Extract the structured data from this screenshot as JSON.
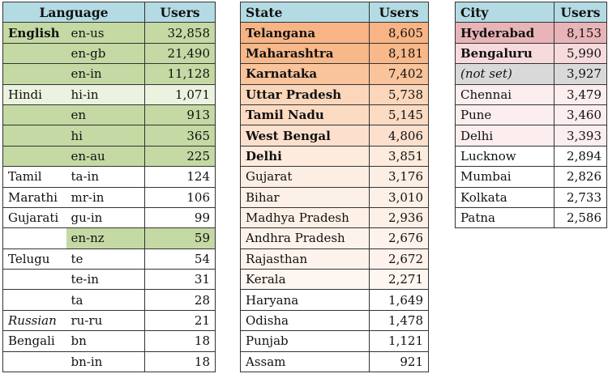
{
  "language_table": {
    "header": {
      "language": "Language",
      "users": "Users"
    },
    "rows": [
      {
        "name": "English",
        "code": "en-us",
        "users": "32,858",
        "name_bold": true,
        "name_italic": false,
        "name_bg": "#c4d9a3",
        "code_bg": "#c4d9a3"
      },
      {
        "name": "",
        "code": "en-gb",
        "users": "21,490",
        "name_bold": false,
        "name_italic": false,
        "name_bg": "#c4d9a3",
        "code_bg": "#c4d9a3"
      },
      {
        "name": "",
        "code": "en-in",
        "users": "11,128",
        "name_bold": false,
        "name_italic": false,
        "name_bg": "#c4d9a3",
        "code_bg": "#c4d9a3"
      },
      {
        "name": "Hindi",
        "code": "hi-in",
        "users": "1,071",
        "name_bold": false,
        "name_italic": false,
        "name_bg": "#ebf2df",
        "code_bg": "#ebf2df"
      },
      {
        "name": "",
        "code": "en",
        "users": "913",
        "name_bold": false,
        "name_italic": false,
        "name_bg": "#c4d9a3",
        "code_bg": "#c4d9a3"
      },
      {
        "name": "",
        "code": "hi",
        "users": "365",
        "name_bold": false,
        "name_italic": false,
        "name_bg": "#c4d9a3",
        "code_bg": "#c4d9a3"
      },
      {
        "name": "",
        "code": "en-au",
        "users": "225",
        "name_bold": false,
        "name_italic": false,
        "name_bg": "#c4d9a3",
        "code_bg": "#c4d9a3"
      },
      {
        "name": "Tamil",
        "code": "ta-in",
        "users": "124",
        "name_bold": false,
        "name_italic": false,
        "name_bg": "#ffffff",
        "code_bg": "#ffffff"
      },
      {
        "name": "Marathi",
        "code": "mr-in",
        "users": "106",
        "name_bold": false,
        "name_italic": false,
        "name_bg": "#ffffff",
        "code_bg": "#ffffff"
      },
      {
        "name": "Gujarati",
        "code": "gu-in",
        "users": "99",
        "name_bold": false,
        "name_italic": false,
        "name_bg": "#ffffff",
        "code_bg": "#ffffff"
      },
      {
        "name": "",
        "code": "en-nz",
        "users": "59",
        "name_bold": false,
        "name_italic": false,
        "name_bg": "#ffffff",
        "code_bg": "#c4d9a3"
      },
      {
        "name": "Telugu",
        "code": "te",
        "users": "54",
        "name_bold": false,
        "name_italic": false,
        "name_bg": "#ffffff",
        "code_bg": "#ffffff"
      },
      {
        "name": "",
        "code": "te-in",
        "users": "31",
        "name_bold": false,
        "name_italic": false,
        "name_bg": "#ffffff",
        "code_bg": "#ffffff"
      },
      {
        "name": "",
        "code": "ta",
        "users": "28",
        "name_bold": false,
        "name_italic": false,
        "name_bg": "#ffffff",
        "code_bg": "#ffffff"
      },
      {
        "name": "Russian",
        "code": "ru-ru",
        "users": "21",
        "name_bold": false,
        "name_italic": true,
        "name_bg": "#ffffff",
        "code_bg": "#ffffff"
      },
      {
        "name": "Bengali",
        "code": "bn",
        "users": "18",
        "name_bold": false,
        "name_italic": false,
        "name_bg": "#ffffff",
        "code_bg": "#ffffff"
      },
      {
        "name": "",
        "code": "bn-in",
        "users": "18",
        "name_bold": false,
        "name_italic": false,
        "name_bg": "#ffffff",
        "code_bg": "#ffffff"
      }
    ]
  },
  "state_table": {
    "header": {
      "state": "State",
      "users": "Users"
    },
    "rows": [
      {
        "state": "Telangana",
        "users": "8,605",
        "bold": true,
        "bg": "#f8b485"
      },
      {
        "state": "Maharashtra",
        "users": "8,181",
        "bold": true,
        "bg": "#f8b889"
      },
      {
        "state": "Karnataka",
        "users": "7,402",
        "bold": true,
        "bg": "#f9c39b"
      },
      {
        "state": "Uttar Pradesh",
        "users": "5,738",
        "bold": true,
        "bg": "#fbd6bb"
      },
      {
        "state": "Tamil Nadu",
        "users": "5,145",
        "bold": true,
        "bg": "#fcdbc3"
      },
      {
        "state": "West Bengal",
        "users": "4,806",
        "bold": true,
        "bg": "#fce0cd"
      },
      {
        "state": "Delhi",
        "users": "3,851",
        "bold": true,
        "bg": "#fdebdd"
      },
      {
        "state": "Gujarat",
        "users": "3,176",
        "bold": false,
        "bg": "#fdeee4"
      },
      {
        "state": "Bihar",
        "users": "3,010",
        "bold": false,
        "bg": "#fdf0e6"
      },
      {
        "state": "Madhya Pradesh",
        "users": "2,936",
        "bold": false,
        "bg": "#fdf0e7"
      },
      {
        "state": "Andhra Pradesh",
        "users": "2,676",
        "bold": false,
        "bg": "#fef3ec"
      },
      {
        "state": "Rajasthan",
        "users": "2,672",
        "bold": false,
        "bg": "#fef3ec"
      },
      {
        "state": "Kerala",
        "users": "2,271",
        "bold": false,
        "bg": "#fef6f1"
      },
      {
        "state": "Haryana",
        "users": "1,649",
        "bold": false,
        "bg": "#ffffff"
      },
      {
        "state": "Odisha",
        "users": "1,478",
        "bold": false,
        "bg": "#ffffff"
      },
      {
        "state": "Punjab",
        "users": "1,121",
        "bold": false,
        "bg": "#ffffff"
      },
      {
        "state": "Assam",
        "users": "921",
        "bold": false,
        "bg": "#ffffff"
      }
    ]
  },
  "city_table": {
    "header": {
      "city": "City",
      "users": "Users"
    },
    "rows": [
      {
        "city": "Hyderabad",
        "users": "8,153",
        "bold": true,
        "italic": false,
        "bg": "#e8b4b8"
      },
      {
        "city": "Bengaluru",
        "users": "5,990",
        "bold": true,
        "italic": false,
        "bg": "#f6dadc"
      },
      {
        "city": "(not set)",
        "users": "3,927",
        "bold": false,
        "italic": true,
        "bg": "#d9d9d9"
      },
      {
        "city": "Chennai",
        "users": "3,479",
        "bold": false,
        "italic": false,
        "bg": "#fcedee"
      },
      {
        "city": "Pune",
        "users": "3,460",
        "bold": false,
        "italic": false,
        "bg": "#fcedee"
      },
      {
        "city": "Delhi",
        "users": "3,393",
        "bold": false,
        "italic": false,
        "bg": "#fcedee"
      },
      {
        "city": "Lucknow",
        "users": "2,894",
        "bold": false,
        "italic": false,
        "bg": "#ffffff"
      },
      {
        "city": "Mumbai",
        "users": "2,826",
        "bold": false,
        "italic": false,
        "bg": "#ffffff"
      },
      {
        "city": "Kolkata",
        "users": "2,733",
        "bold": false,
        "italic": false,
        "bg": "#ffffff"
      },
      {
        "city": "Patna",
        "users": "2,586",
        "bold": false,
        "italic": false,
        "bg": "#ffffff"
      }
    ]
  }
}
